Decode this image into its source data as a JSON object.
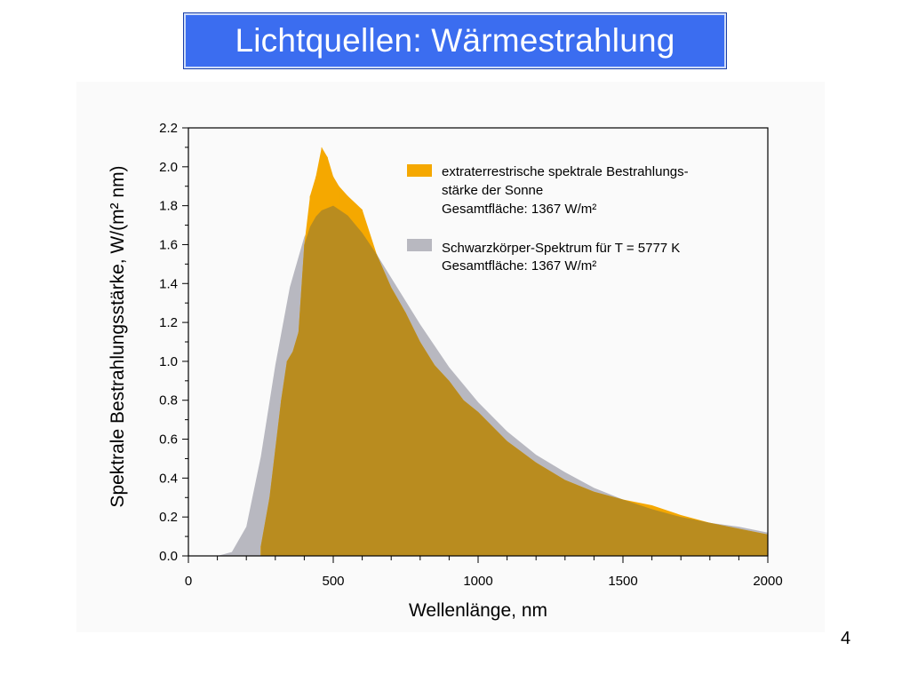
{
  "slide": {
    "title": "Lichtquellen: Wärmestrahlung",
    "page_number": "4"
  },
  "colors": {
    "title_bg": "#3b6df0",
    "sun": "#f5a800",
    "blackbody": "#b8b8c0",
    "overlap": "#b98c1f"
  },
  "chart_data": {
    "type": "area",
    "title": "",
    "xlabel": "Wellenlänge, nm",
    "ylabel": "Spektrale Bestrahlungsstärke, W/(m² nm)",
    "xlim": [
      0,
      2000
    ],
    "ylim": [
      0,
      2.2
    ],
    "xticks": [
      "0",
      "500",
      "1000",
      "1500",
      "2000"
    ],
    "yticks": [
      "0.0",
      "0.2",
      "0.4",
      "0.6",
      "0.8",
      "1.0",
      "1.2",
      "1.4",
      "1.6",
      "1.8",
      "2.0",
      "2.2"
    ],
    "grid": false,
    "legend_position": "top-right",
    "series": [
      {
        "name": "extraterrestrische spektrale Bestrahlungsstärke der Sonne",
        "legend_lines": [
          "extraterrestrische spektrale Bestrahlungs-",
          "stärke der Sonne",
          "Gesamtfläche: 1367 W/m²"
        ],
        "x": [
          250,
          280,
          300,
          320,
          340,
          360,
          380,
          400,
          420,
          440,
          460,
          480,
          500,
          520,
          550,
          600,
          650,
          700,
          750,
          800,
          850,
          900,
          950,
          1000,
          1100,
          1200,
          1300,
          1400,
          1500,
          1600,
          1700,
          1800,
          1900,
          2000
        ],
        "values": [
          0.05,
          0.3,
          0.55,
          0.8,
          1.0,
          1.05,
          1.15,
          1.6,
          1.85,
          1.95,
          2.1,
          2.05,
          1.95,
          1.9,
          1.85,
          1.78,
          1.55,
          1.38,
          1.25,
          1.1,
          0.98,
          0.9,
          0.8,
          0.74,
          0.59,
          0.48,
          0.39,
          0.33,
          0.29,
          0.26,
          0.21,
          0.17,
          0.14,
          0.11
        ]
      },
      {
        "name": "Schwarzkörper-Spektrum für T = 5777 K",
        "legend_lines": [
          "Schwarzkörper-Spektrum für T = 5777 K",
          "Gesamtfläche: 1367 W/m²"
        ],
        "x": [
          100,
          150,
          200,
          250,
          300,
          350,
          400,
          450,
          500,
          550,
          600,
          650,
          700,
          750,
          800,
          900,
          1000,
          1100,
          1200,
          1300,
          1400,
          1500,
          1600,
          1700,
          1800,
          1900,
          2000
        ],
        "values": [
          0.0,
          0.02,
          0.15,
          0.51,
          0.98,
          1.38,
          1.64,
          1.77,
          1.8,
          1.75,
          1.66,
          1.55,
          1.43,
          1.31,
          1.19,
          0.97,
          0.79,
          0.64,
          0.52,
          0.43,
          0.35,
          0.29,
          0.24,
          0.2,
          0.17,
          0.15,
          0.12
        ]
      }
    ]
  }
}
